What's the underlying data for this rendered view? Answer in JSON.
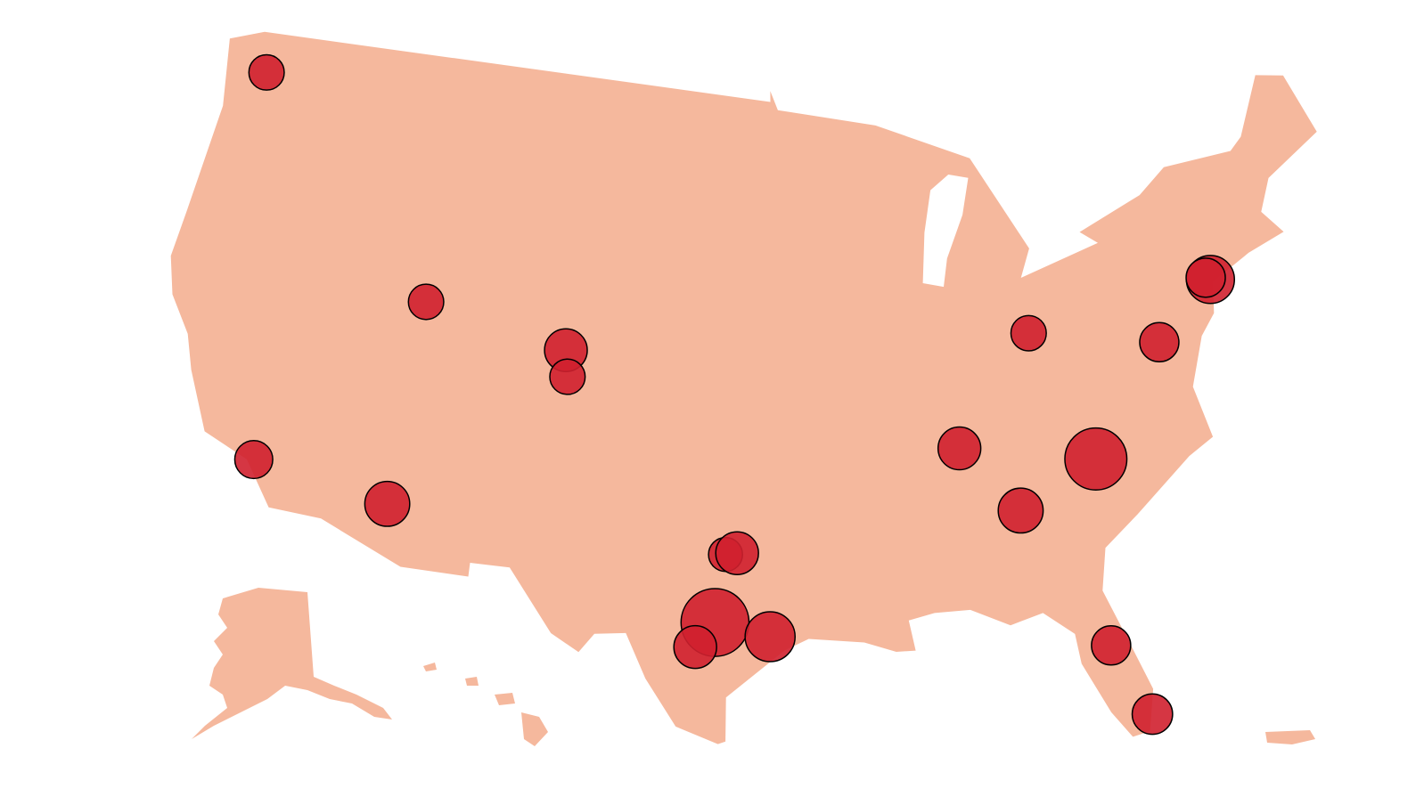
{
  "map": {
    "bubble_color": "#d0202f",
    "land_color": "#f5b89d",
    "bubbles": [
      {
        "lon": -122.3,
        "lat": 47.6,
        "size": 13
      },
      {
        "lon": -111.9,
        "lat": 40.8,
        "size": 13
      },
      {
        "lon": -104.99,
        "lat": 39.74,
        "size": 19
      },
      {
        "lon": -104.8,
        "lat": 38.8,
        "size": 13
      },
      {
        "lon": -118.2,
        "lat": 34.05,
        "size": 15
      },
      {
        "lon": -112.1,
        "lat": 33.45,
        "size": 21
      },
      {
        "lon": -97.3,
        "lat": 32.75,
        "size": 12
      },
      {
        "lon": -96.8,
        "lat": 32.8,
        "size": 19
      },
      {
        "lon": -97.7,
        "lat": 30.3,
        "size": 48
      },
      {
        "lon": -98.5,
        "lat": 29.4,
        "size": 19
      },
      {
        "lon": -95.4,
        "lat": 29.8,
        "size": 26
      },
      {
        "lon": -86.8,
        "lat": 36.2,
        "size": 19
      },
      {
        "lon": -84.4,
        "lat": 33.75,
        "size": 21
      },
      {
        "lon": -80.8,
        "lat": 35.2,
        "size": 40
      },
      {
        "lon": -83.0,
        "lat": 40.0,
        "size": 13
      },
      {
        "lon": -77.0,
        "lat": 38.9,
        "size": 16
      },
      {
        "lon": -74.0,
        "lat": 40.7,
        "size": 24
      },
      {
        "lon": -74.2,
        "lat": 40.8,
        "size": 16
      },
      {
        "lon": -81.4,
        "lat": 28.5,
        "size": 16
      },
      {
        "lon": -80.2,
        "lat": 25.8,
        "size": 17
      }
    ]
  }
}
